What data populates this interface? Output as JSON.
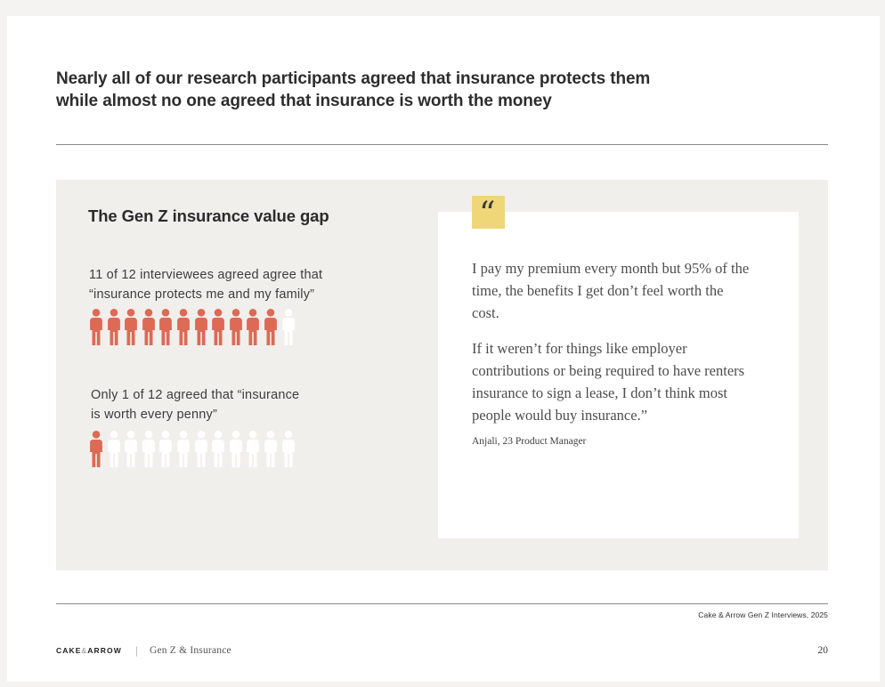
{
  "colors": {
    "person_filled": "#DC6A55",
    "person_empty": "#FFFFFF",
    "quote_mark_bg": "#EFD678",
    "panel_bg": "#F1EFEC"
  },
  "slide": {
    "title": "Nearly all of our research participants agreed that insurance protects them while almost no one agreed that insurance is worth the money"
  },
  "panel": {
    "heading": "The Gen Z insurance value gap",
    "stats": [
      {
        "line1": "11 of 12 interviewees agreed agree that",
        "line2": "“insurance protects me and my family”",
        "filled": 11,
        "total": 12
      },
      {
        "line1": "Only 1 of 12 agreed that “insurance",
        "line2": "is worth every penny”",
        "filled": 1,
        "total": 12
      }
    ]
  },
  "quote": {
    "mark": "“",
    "paragraphs": [
      "I pay my premium every month but 95% of the time, the benefits I get don’t feel worth the cost.",
      "If it weren’t for things like employer contributions or being required to have renters insurance to sign a lease, I don’t think most people would buy insurance.”"
    ],
    "attribution": "Anjali, 23 Product Manager"
  },
  "footer": {
    "source": "Cake & Arrow Gen Z Interviews, 2025",
    "logo_cake": "CAKE",
    "logo_amp": "&",
    "logo_arrow": "ARROW",
    "doc_title": "Gen Z & Insurance",
    "page_number": "20"
  }
}
